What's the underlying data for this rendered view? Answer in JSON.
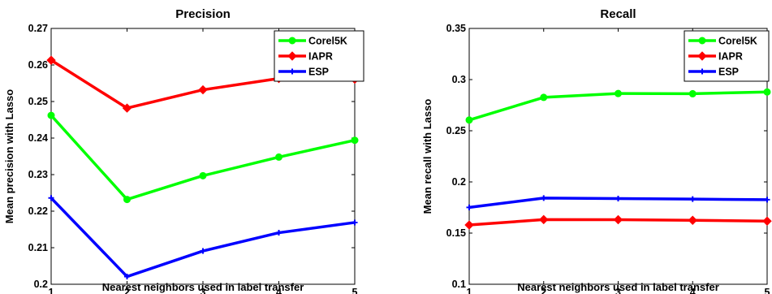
{
  "chart_data": [
    {
      "type": "line",
      "title": "Precision",
      "xlabel": "Nearest neighbors used in label transfer",
      "ylabel": "Mean precision with Lasso",
      "x": [
        1,
        2,
        3,
        4,
        5
      ],
      "xlim": [
        1,
        5
      ],
      "ylim": [
        0.2,
        0.27
      ],
      "xticks": [
        "1",
        "2",
        "3",
        "4",
        "5"
      ],
      "yticks": [
        "0.2",
        "0.21",
        "0.22",
        "0.23",
        "0.24",
        "0.25",
        "0.26",
        "0.27"
      ],
      "grid": false,
      "legend_position": "top-right",
      "series": [
        {
          "name": "Corel5K",
          "color": "#00ff00",
          "marker": "circle",
          "values": [
            0.2462,
            0.2232,
            0.2297,
            0.2348,
            0.2394
          ]
        },
        {
          "name": "IAPR",
          "color": "#ff0000",
          "marker": "diamond",
          "values": [
            0.2613,
            0.2482,
            0.2532,
            0.2563,
            0.2561
          ]
        },
        {
          "name": "ESP",
          "color": "#0000ff",
          "marker": "plus",
          "values": [
            0.2236,
            0.2021,
            0.2091,
            0.2141,
            0.2169
          ]
        }
      ]
    },
    {
      "type": "line",
      "title": "Recall",
      "xlabel": "Nearest neighbors used in label transfer",
      "ylabel": "Mean recall with Lasso",
      "x": [
        1,
        2,
        3,
        4,
        5
      ],
      "xlim": [
        1,
        5
      ],
      "ylim": [
        0.1,
        0.35
      ],
      "xticks": [
        "1",
        "2",
        "3",
        "4",
        "5"
      ],
      "yticks": [
        "0.1",
        "0.15",
        "0.2",
        "0.25",
        "0.3",
        "0.35"
      ],
      "grid": false,
      "legend_position": "top-right",
      "series": [
        {
          "name": "Corel5K",
          "color": "#00ff00",
          "marker": "circle",
          "values": [
            0.2605,
            0.2826,
            0.2864,
            0.2862,
            0.2879
          ]
        },
        {
          "name": "IAPR",
          "color": "#ff0000",
          "marker": "diamond",
          "values": [
            0.1579,
            0.1632,
            0.1631,
            0.1625,
            0.1617
          ]
        },
        {
          "name": "ESP",
          "color": "#0000ff",
          "marker": "plus",
          "values": [
            0.1751,
            0.1842,
            0.1837,
            0.1832,
            0.1826
          ]
        }
      ]
    }
  ]
}
